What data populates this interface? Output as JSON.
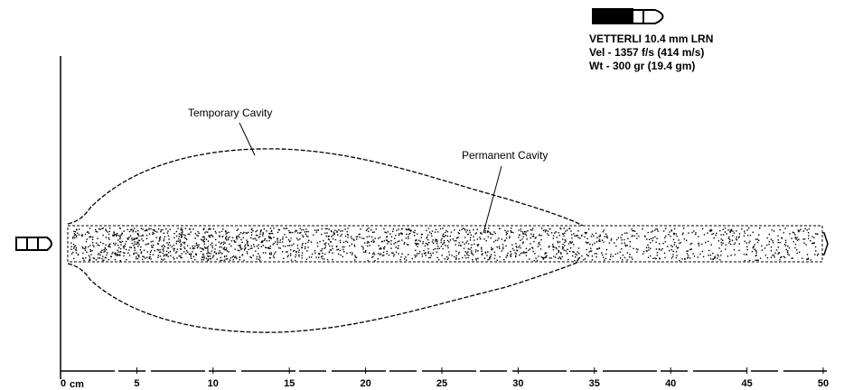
{
  "header": {
    "lines": [
      "VETTERLI 10.4 mm LRN",
      "Vel - 1357 f/s  (414 m/s)",
      "Wt - 300 gr  (19.4 gm)"
    ]
  },
  "labels": {
    "temporary": "Temporary Cavity",
    "permanent": "Permanent Cavity"
  },
  "axis": {
    "unit": "cm",
    "ticks": [
      0,
      5,
      10,
      15,
      20,
      25,
      30,
      35,
      40,
      45,
      50
    ]
  }
}
